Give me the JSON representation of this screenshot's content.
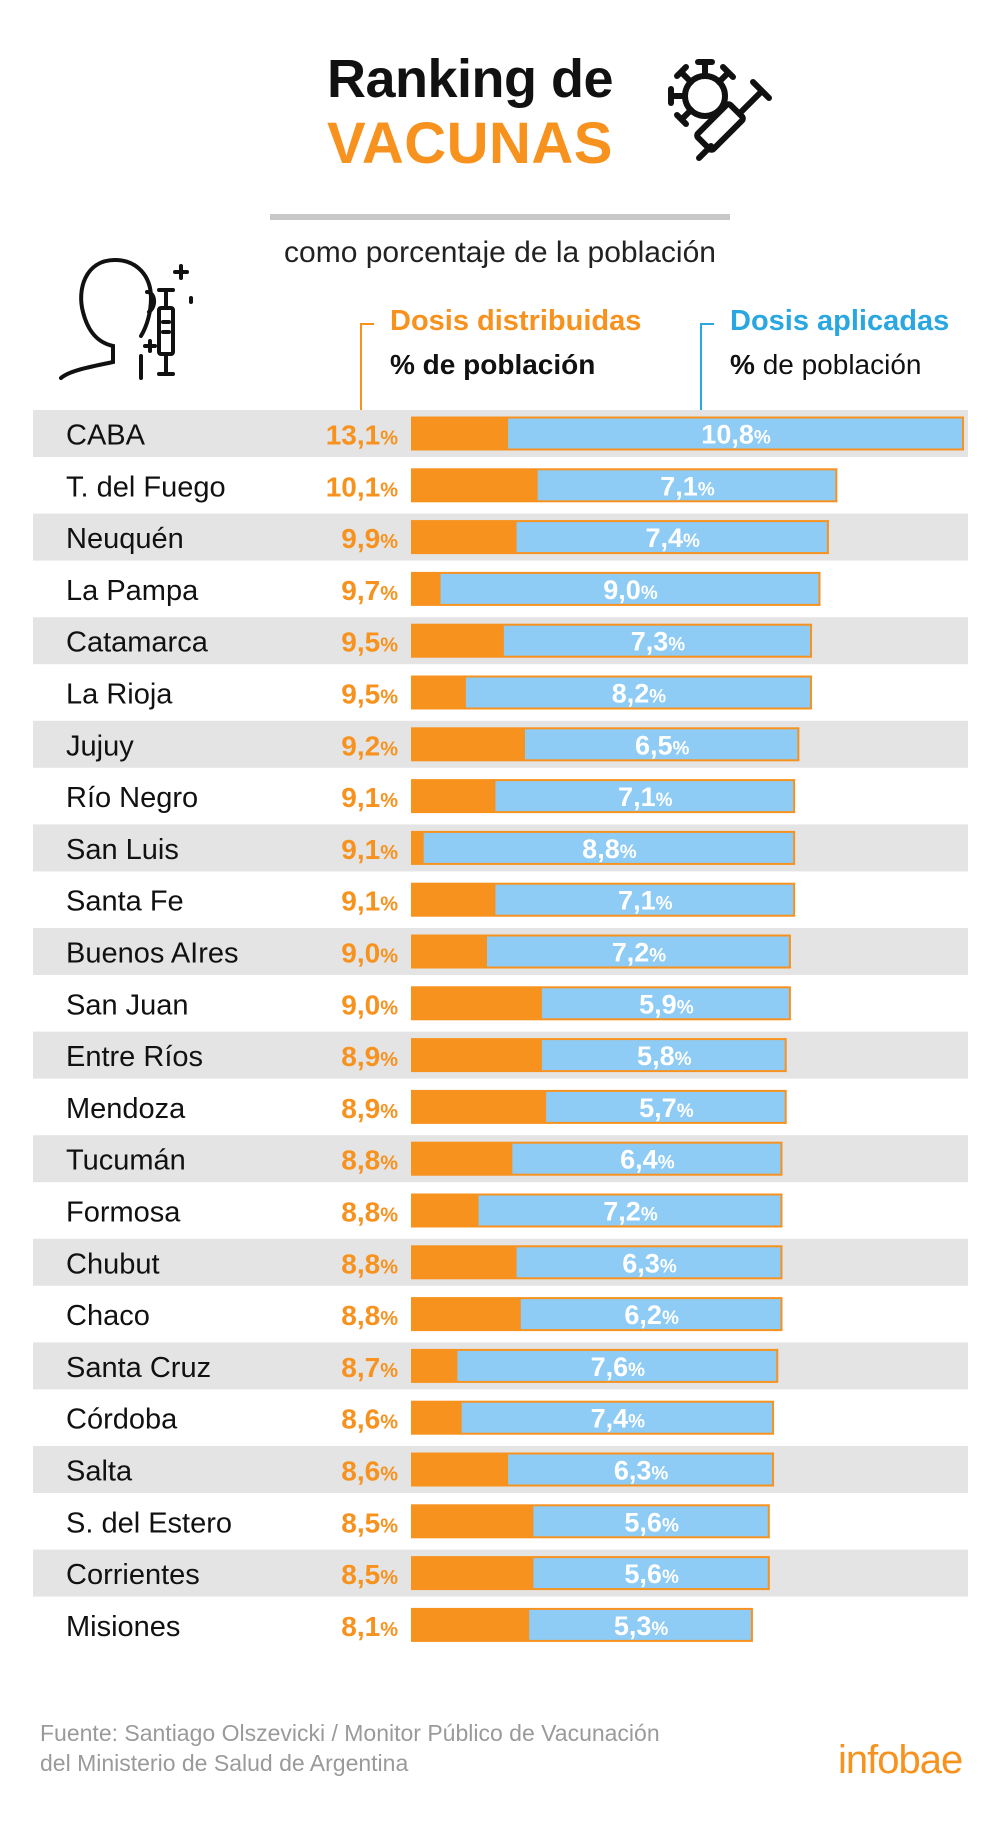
{
  "title": {
    "line1": "Ranking de",
    "line2": "VACUNAS",
    "subtitle": "como porcentaje de la población"
  },
  "legend": {
    "distributed": {
      "title": "Dosis distribuidas",
      "sub_bold": "% de población"
    },
    "applied": {
      "title": "Dosis aplicadas",
      "sub_pct": "%",
      "sub_rest": "de población"
    }
  },
  "colors": {
    "distributed": "#f7921e",
    "applied": "#8ecbf5",
    "stripe": "#e4e4e4",
    "dist_text": "#f7921e",
    "applied_text": "#ffffff"
  },
  "chart_data": {
    "type": "bar",
    "orientation": "horizontal",
    "stacked": "overlay",
    "title": "Ranking de VACUNAS",
    "subtitle": "como porcentaje de la población",
    "value_suffix": "%",
    "categories": [
      "CABA",
      "T. del Fuego",
      "Neuquén",
      "La Pampa",
      "Catamarca",
      "La Rioja",
      "Jujuy",
      "Río Negro",
      "San Luis",
      "Santa Fe",
      "Buenos AIres",
      "San Juan",
      "Entre Ríos",
      "Mendoza",
      "Tucumán",
      "Formosa",
      "Chubut",
      "Chaco",
      "Santa Cruz",
      "Córdoba",
      "Salta",
      "S. del Estero",
      "Corrientes",
      "Misiones"
    ],
    "series": [
      {
        "name": "Dosis distribuidas",
        "values": [
          13.1,
          10.1,
          9.9,
          9.7,
          9.5,
          9.5,
          9.2,
          9.1,
          9.1,
          9.1,
          9.0,
          9.0,
          8.9,
          8.9,
          8.8,
          8.8,
          8.8,
          8.8,
          8.7,
          8.6,
          8.6,
          8.5,
          8.5,
          8.1
        ],
        "labels": [
          "13,1",
          "10,1",
          "9,9",
          "9,7",
          "9,5",
          "9,5",
          "9,2",
          "9,1",
          "9,1",
          "9,1",
          "9,0",
          "9,0",
          "8,9",
          "8,9",
          "8,8",
          "8,8",
          "8,8",
          "8,8",
          "8,7",
          "8,6",
          "8,6",
          "8,5",
          "8,5",
          "8,1"
        ]
      },
      {
        "name": "Dosis aplicadas",
        "values": [
          10.8,
          7.1,
          7.4,
          9.0,
          7.3,
          8.2,
          6.5,
          7.1,
          8.8,
          7.1,
          7.2,
          5.9,
          5.8,
          5.7,
          6.4,
          7.2,
          6.3,
          6.2,
          7.6,
          7.4,
          6.3,
          5.6,
          5.6,
          5.3
        ],
        "labels": [
          "10,8",
          "7,1",
          "7,4",
          "9,0",
          "7,3",
          "8,2",
          "6,5",
          "7,1",
          "8,8",
          "7,1",
          "7,2",
          "5,9",
          "5,8",
          "5,7",
          "6,4",
          "7,2",
          "6,3",
          "6,2",
          "7,6",
          "7,4",
          "6,3",
          "5,6",
          "5,6",
          "5,3"
        ]
      }
    ],
    "xlim": [
      0,
      13.1
    ]
  },
  "footer": {
    "source_line1": "Fuente: Santiago Olszevicki / Monitor Público de Vacunación",
    "source_line2": "del Ministerio de Salud de Argentina",
    "logo": "infobae"
  }
}
